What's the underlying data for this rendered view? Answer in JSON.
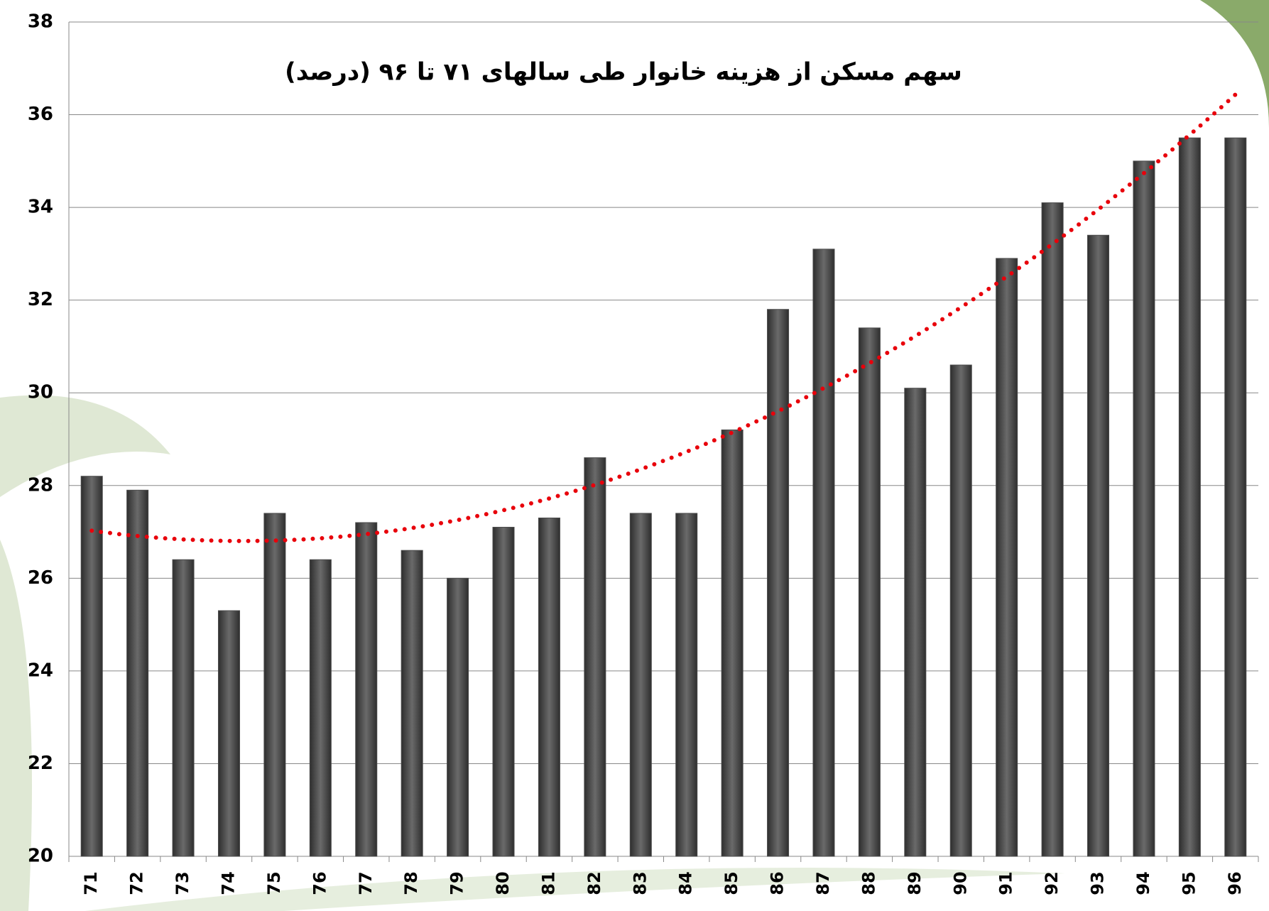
{
  "chart_data": {
    "type": "bar",
    "title": "سهم مسکن از هزینه خانوار طی سالهای ۷۱ تا ۹۶ (درصد)",
    "categories": [
      "71",
      "72",
      "73",
      "74",
      "75",
      "76",
      "77",
      "78",
      "79",
      "80",
      "81",
      "82",
      "83",
      "84",
      "85",
      "86",
      "87",
      "88",
      "89",
      "90",
      "91",
      "92",
      "93",
      "94",
      "95",
      "96"
    ],
    "values": [
      28.2,
      27.9,
      26.4,
      25.3,
      27.4,
      26.4,
      27.2,
      26.6,
      26.0,
      27.1,
      27.3,
      28.6,
      27.4,
      27.4,
      29.2,
      31.8,
      33.1,
      31.4,
      30.1,
      30.6,
      32.9,
      34.1,
      33.4,
      35.0,
      35.5,
      35.5
    ],
    "color": "#4a4a4a",
    "ylim": [
      20,
      38
    ],
    "yticks": [
      20,
      22,
      24,
      26,
      28,
      30,
      32,
      34,
      36,
      38
    ],
    "grid": true,
    "trendline": {
      "kind": "polynomial",
      "order": 2,
      "color": "#e8000b"
    }
  }
}
